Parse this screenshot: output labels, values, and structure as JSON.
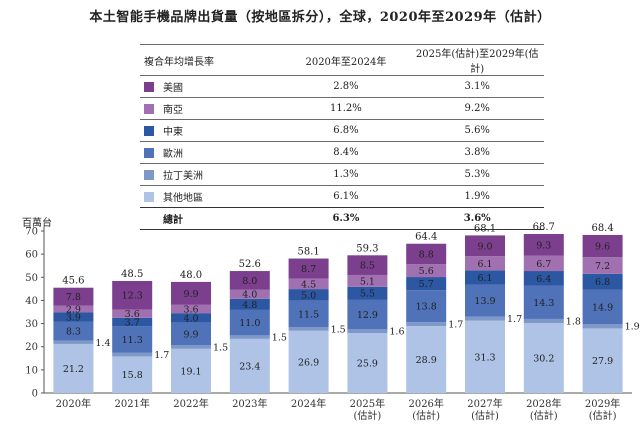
{
  "title": "本土智能手機品牌出貨量（按地區拆分），全球，2020年至2029年（估計）",
  "unit_label": "百萬台",
  "table": {
    "headers": [
      "複合年均增長率",
      "2020年至2024年",
      "2025年(估計)至2029年(估計)"
    ],
    "rows": [
      {
        "region": "美國",
        "cagr_2020_2024": "2.8%",
        "cagr_2025_2029": "3.1%",
        "color": "#7b3f8e"
      },
      {
        "region": "南亞",
        "cagr_2020_2024": "11.2%",
        "cagr_2025_2029": "9.2%",
        "color": "#a070b0"
      },
      {
        "region": "中東",
        "cagr_2020_2024": "6.8%",
        "cagr_2025_2029": "5.6%",
        "color": "#2b57a3"
      },
      {
        "region": "歐洲",
        "cagr_2020_2024": "8.4%",
        "cagr_2025_2029": "3.8%",
        "color": "#4f72b8"
      },
      {
        "region": "拉丁美洲",
        "cagr_2020_2024": "1.3%",
        "cagr_2025_2029": "5.3%",
        "color": "#7e98c8"
      },
      {
        "region": "其他地區",
        "cagr_2020_2024": "6.1%",
        "cagr_2025_2029": "1.9%",
        "color": "#aec3e6"
      }
    ],
    "total": {
      "region": "總計",
      "cagr_2020_2024": "6.3%",
      "cagr_2025_2029": "3.6%"
    }
  },
  "chart_data": {
    "type": "bar",
    "stacked": true,
    "categories": [
      "2020年",
      "2021年",
      "2022年",
      "2023年",
      "2024年",
      "2025年\n(估計)",
      "2026年\n(估計)",
      "2027年\n(估計)",
      "2028年\n(估計)",
      "2029年\n(估計)"
    ],
    "ylim": [
      0,
      70
    ],
    "yticks": [
      0,
      10,
      20,
      30,
      40,
      50,
      60,
      70
    ],
    "ylabel": "百萬台",
    "series": [
      {
        "name": "其他地區",
        "color": "#aec3e6",
        "values": [
          21.2,
          15.8,
          19.1,
          23.4,
          26.9,
          25.9,
          28.9,
          31.3,
          30.2,
          27.9
        ]
      },
      {
        "name": "拉丁美洲",
        "color": "#7e98c8",
        "values": [
          1.4,
          1.7,
          1.5,
          1.5,
          1.5,
          1.6,
          1.7,
          1.7,
          1.8,
          1.9
        ]
      },
      {
        "name": "歐洲",
        "color": "#4f72b8",
        "values": [
          8.3,
          11.3,
          9.9,
          11.0,
          11.5,
          12.9,
          13.8,
          13.9,
          14.3,
          14.9
        ]
      },
      {
        "name": "中東",
        "color": "#2b57a3",
        "values": [
          3.9,
          3.7,
          4.0,
          4.8,
          5.0,
          5.5,
          5.7,
          6.1,
          6.4,
          6.8
        ]
      },
      {
        "name": "南亞",
        "color": "#a070b0",
        "values": [
          2.9,
          3.6,
          3.6,
          4.0,
          4.5,
          5.1,
          5.6,
          6.1,
          6.7,
          7.2
        ]
      },
      {
        "name": "美國",
        "color": "#7b3f8e",
        "values": [
          7.8,
          12.3,
          9.9,
          8.0,
          8.7,
          8.5,
          8.8,
          9.0,
          9.3,
          9.6
        ]
      }
    ],
    "totals": [
      45.6,
      48.5,
      48.0,
      52.6,
      58.1,
      59.3,
      64.4,
      68.1,
      68.7,
      68.4
    ]
  }
}
